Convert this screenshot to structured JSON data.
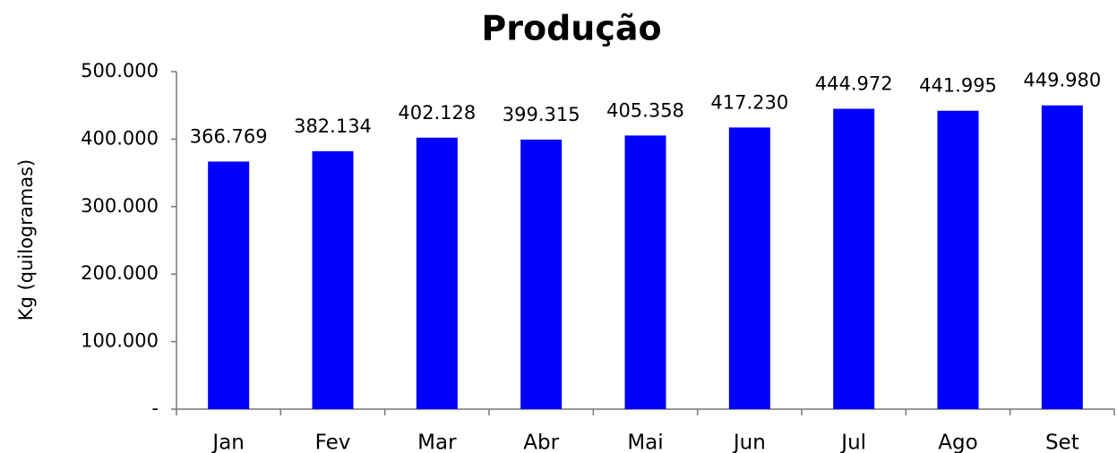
{
  "chart_data": {
    "type": "bar",
    "title": "Produção",
    "y_label": "Kg (quilogramas)",
    "categories": [
      "Jan",
      "Fev",
      "Mar",
      "Abr",
      "Mai",
      "Jun",
      "Jul",
      "Ago",
      "Set"
    ],
    "values": [
      366769,
      382134,
      402128,
      399315,
      405358,
      417230,
      444972,
      441995,
      449980
    ],
    "value_labels": [
      "366.769",
      "382.134",
      "402.128",
      "399.315",
      "405.358",
      "417.230",
      "444.972",
      "441.995",
      "449.980"
    ],
    "color": "#0000ff",
    "ylim": [
      0,
      500000
    ],
    "yticks": [
      {
        "value": 0,
        "label": "-"
      },
      {
        "value": 100000,
        "label": "100.000"
      },
      {
        "value": 200000,
        "label": "200.000"
      },
      {
        "value": 300000,
        "label": "300.000"
      },
      {
        "value": 400000,
        "label": "400.000"
      },
      {
        "value": 500000,
        "label": "500.000"
      }
    ],
    "grid": false
  }
}
